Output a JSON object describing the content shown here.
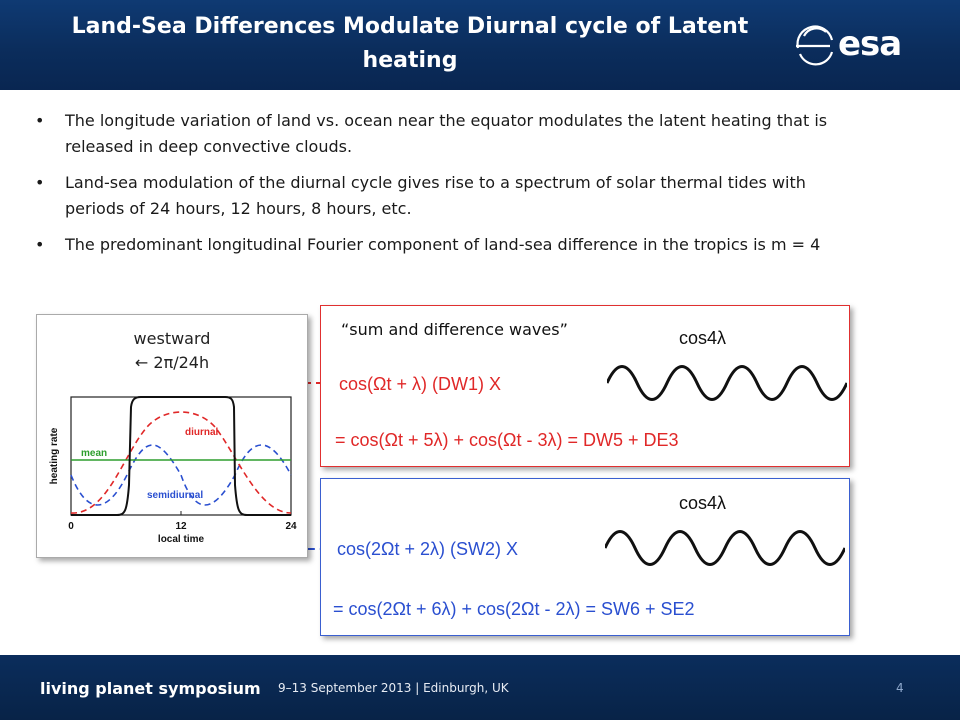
{
  "header": {
    "title": "Land-Sea Differences Modulate Diurnal cycle of Latent heating",
    "logo_text": "esa"
  },
  "bullets": [
    "The longitude variation of land vs. ocean near the equator modulates the latent heating that is released in deep convective clouds.",
    "Land-sea modulation of the diurnal cycle gives rise to a spectrum of solar thermal tides with periods of 24 hours, 12 hours, 8 hours, etc.",
    "The predominant longitudinal Fourier component of land-sea difference in the tropics is m = 4"
  ],
  "figure": {
    "westward_label": "westward",
    "westward_rate": "← 2π/24h",
    "y_label": "heating rate",
    "x_label": "local time",
    "x_ticks": [
      "0",
      "12",
      "24"
    ],
    "curve_labels": {
      "diurnal": "diurnal",
      "mean": "mean",
      "semidiurnal": "semidiurnal"
    },
    "colors": {
      "heating": "#111111",
      "diurnal": "#e02828",
      "mean": "#2e9e2e",
      "semidiurnal": "#2a4fd0"
    }
  },
  "dw_box": {
    "quote": "“sum and difference waves”",
    "cos_label": "cos4λ",
    "product": "cos(Ωt + λ)  (DW1)  X",
    "result": "=  cos(Ωt + 5λ) + cos(Ωt - 3λ)  =   DW5 + DE3"
  },
  "sw_box": {
    "cos_label": "cos4λ",
    "product": "cos(2Ωt + 2λ) (SW2)  X",
    "result": "=  cos(2Ωt + 6λ) + cos(2Ωt - 2λ)  =   SW6 + SE2"
  },
  "footer": {
    "brand": "living planet symposium",
    "event": "9–13 September 2013 | Edinburgh, UK",
    "page_number": "4"
  }
}
